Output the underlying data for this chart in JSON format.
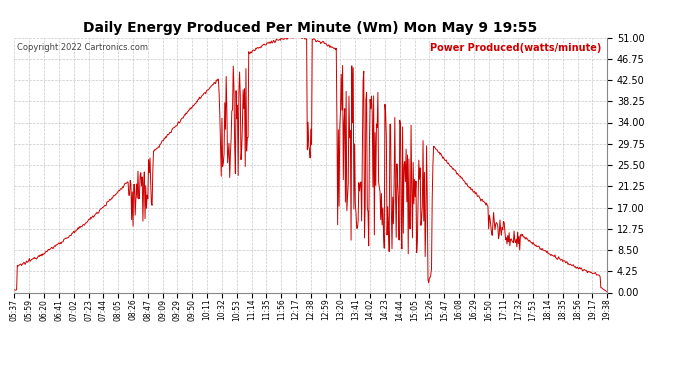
{
  "title": "Daily Energy Produced Per Minute (Wm) Mon May 9 19:55",
  "copyright_text": "Copyright 2022 Cartronics.com",
  "legend_label": "Power Produced(watts/minute)",
  "legend_color": "#cc0000",
  "title_fontsize": 10,
  "line_color": "#cc0000",
  "bg_color": "#ffffff",
  "grid_color": "#bbbbbb",
  "yticks": [
    0.0,
    4.25,
    8.5,
    12.75,
    17.0,
    21.25,
    25.5,
    29.75,
    34.0,
    38.25,
    42.5,
    46.75,
    51.0
  ],
  "ylim": [
    0.0,
    51.0
  ],
  "xtick_labels": [
    "05:37",
    "05:59",
    "06:20",
    "06:41",
    "07:02",
    "07:23",
    "07:44",
    "08:05",
    "08:26",
    "08:47",
    "09:09",
    "09:29",
    "09:50",
    "10:11",
    "10:32",
    "10:53",
    "11:14",
    "11:35",
    "11:56",
    "12:17",
    "12:38",
    "12:59",
    "13:20",
    "13:41",
    "14:02",
    "14:23",
    "14:44",
    "15:05",
    "15:26",
    "15:47",
    "16:08",
    "16:29",
    "16:50",
    "17:11",
    "17:32",
    "17:53",
    "18:14",
    "18:35",
    "18:56",
    "19:17",
    "19:38"
  ]
}
